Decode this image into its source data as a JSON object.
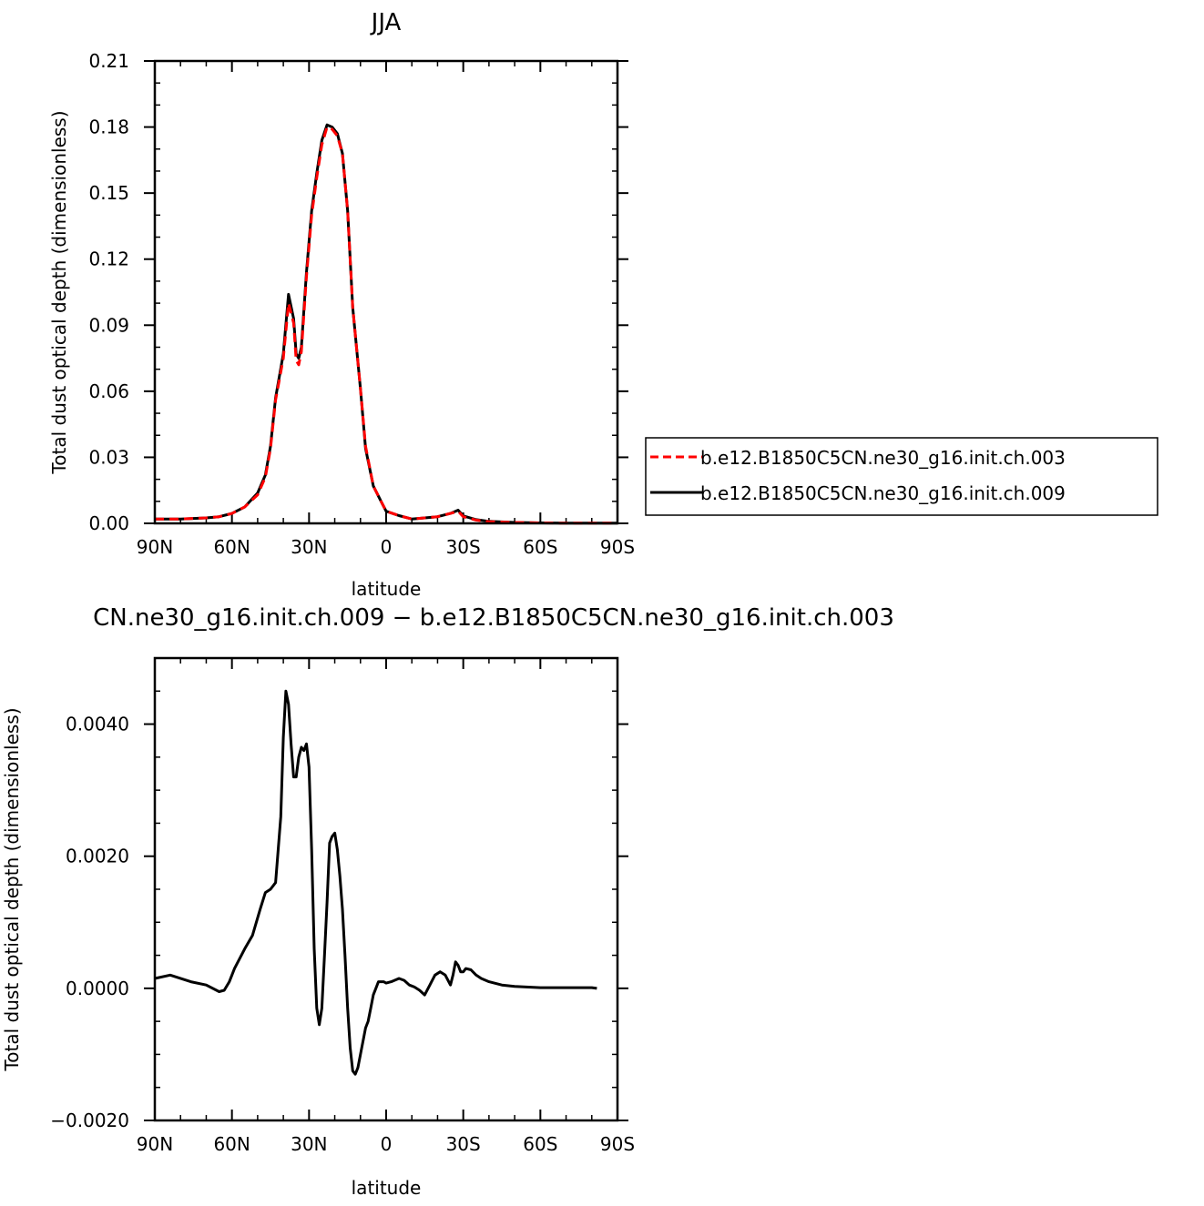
{
  "chart_data": [
    {
      "type": "line",
      "title": "JJA",
      "xlabel": "latitude",
      "ylabel": "Total dust optical depth (dimensionless)",
      "xlim": [
        90,
        -90
      ],
      "ylim": [
        0,
        0.21
      ],
      "x_ticks": [
        {
          "value": 90,
          "label": "90N"
        },
        {
          "value": 60,
          "label": "60N"
        },
        {
          "value": 30,
          "label": "30N"
        },
        {
          "value": 0,
          "label": "0"
        },
        {
          "value": -30,
          "label": "30S"
        },
        {
          "value": -60,
          "label": "60S"
        },
        {
          "value": -90,
          "label": "90S"
        }
      ],
      "y_ticks": [
        {
          "value": 0,
          "label": "0.00"
        },
        {
          "value": 0.03,
          "label": "0.03"
        },
        {
          "value": 0.06,
          "label": "0.06"
        },
        {
          "value": 0.09,
          "label": "0.09"
        },
        {
          "value": 0.12,
          "label": "0.12"
        },
        {
          "value": 0.15,
          "label": "0.15"
        },
        {
          "value": 0.18,
          "label": "0.18"
        },
        {
          "value": 0.21,
          "label": "0.21"
        }
      ],
      "grid": false,
      "legend_position": "right",
      "series": [
        {
          "name": "b.e12.B1850C5CN.ne30_g16.init.ch.003",
          "color": "#ff0000",
          "dash": "dashed",
          "x": [
            90,
            80,
            70,
            65,
            60,
            55,
            50,
            47,
            45,
            43,
            40,
            38,
            36,
            35,
            34,
            33,
            31,
            29,
            27,
            25,
            23,
            21,
            19,
            17,
            15,
            13,
            10,
            8,
            5,
            2,
            0,
            -5,
            -10,
            -15,
            -20,
            -25,
            -28,
            -30,
            -35,
            -40,
            -50,
            -60,
            -70,
            -80,
            -90
          ],
          "y": [
            0.002,
            0.002,
            0.0025,
            0.003,
            0.0045,
            0.0075,
            0.013,
            0.021,
            0.034,
            0.056,
            0.075,
            0.1,
            0.091,
            0.074,
            0.072,
            0.078,
            0.112,
            0.14,
            0.157,
            0.172,
            0.18,
            0.179,
            0.176,
            0.168,
            0.142,
            0.098,
            0.061,
            0.035,
            0.017,
            0.01,
            0.0055,
            0.0035,
            0.002,
            0.0025,
            0.003,
            0.0045,
            0.0055,
            0.003,
            0.0015,
            0.0008,
            0.0004,
            0.0002,
            0.0001,
            0.0001,
            0.0001
          ]
        },
        {
          "name": "b.e12.B1850C5CN.ne30_g16.init.ch.009",
          "color": "#000000",
          "dash": "solid",
          "x": [
            90,
            80,
            70,
            65,
            60,
            55,
            50,
            47,
            45,
            43,
            40,
            38,
            36,
            35,
            34,
            33,
            31,
            29,
            27,
            25,
            23,
            21,
            19,
            17,
            15,
            13,
            10,
            8,
            5,
            2,
            0,
            -5,
            -10,
            -15,
            -20,
            -25,
            -28,
            -30,
            -35,
            -40,
            -50,
            -60,
            -70,
            -80,
            -90
          ],
          "y": [
            0.002,
            0.002,
            0.0025,
            0.003,
            0.0045,
            0.0075,
            0.0138,
            0.022,
            0.035,
            0.057,
            0.077,
            0.104,
            0.093,
            0.077,
            0.075,
            0.08,
            0.114,
            0.142,
            0.159,
            0.174,
            0.181,
            0.18,
            0.177,
            0.168,
            0.142,
            0.098,
            0.061,
            0.034,
            0.017,
            0.01,
            0.0055,
            0.0035,
            0.002,
            0.0025,
            0.003,
            0.0045,
            0.006,
            0.0034,
            0.0017,
            0.0009,
            0.0004,
            0.0002,
            0.0001,
            0.0001,
            0.0001
          ]
        }
      ]
    },
    {
      "type": "line",
      "title": "CN.ne30_g16.init.ch.009 − b.e12.B1850C5CN.ne30_g16.init.ch.003",
      "xlabel": "latitude",
      "ylabel": "Total dust optical depth (dimensionless)",
      "xlim": [
        90,
        -90
      ],
      "ylim": [
        -0.002,
        0.005
      ],
      "x_ticks": [
        {
          "value": 90,
          "label": "90N"
        },
        {
          "value": 60,
          "label": "60N"
        },
        {
          "value": 30,
          "label": "30N"
        },
        {
          "value": 0,
          "label": "0"
        },
        {
          "value": -30,
          "label": "30S"
        },
        {
          "value": -60,
          "label": "60S"
        },
        {
          "value": -90,
          "label": "90S"
        }
      ],
      "y_ticks": [
        {
          "value": -0.002,
          "label": "−0.0020"
        },
        {
          "value": 0,
          "label": "0.0000"
        },
        {
          "value": 0.002,
          "label": "0.0020"
        },
        {
          "value": 0.004,
          "label": "0.0040"
        }
      ],
      "grid": false,
      "series": [
        {
          "color": "#000000",
          "dash": "solid",
          "x": [
            90,
            84,
            76,
            70,
            65,
            63,
            61,
            59,
            55,
            52,
            49,
            47,
            45,
            43,
            41,
            40,
            39,
            38,
            37,
            36,
            35,
            34,
            33,
            32,
            31,
            30,
            29,
            28,
            27,
            26,
            25,
            24,
            23,
            22,
            21,
            20,
            19,
            18,
            17,
            16,
            15,
            14,
            13,
            12,
            11,
            10,
            9,
            8,
            7,
            6,
            5,
            4,
            3,
            2,
            1,
            0,
            -2,
            -5,
            -7,
            -9,
            -11,
            -13,
            -15,
            -17,
            -19,
            -21,
            -23,
            -25,
            -26,
            -27,
            -28,
            -29,
            -30,
            -31,
            -33,
            -35,
            -37,
            -40,
            -45,
            -50,
            -60,
            -70,
            -80,
            -82
          ],
          "y": [
            0.00015,
            0.0002,
            0.0001,
            5e-05,
            -5e-05,
            -3e-05,
            0.0001,
            0.0003,
            0.0006,
            0.0008,
            0.0012,
            0.00145,
            0.0015,
            0.0016,
            0.0026,
            0.0038,
            0.0045,
            0.0043,
            0.0037,
            0.0032,
            0.0032,
            0.0035,
            0.00365,
            0.0036,
            0.0037,
            0.00335,
            0.0021,
            0.0006,
            -0.0003,
            -0.00055,
            -0.0003,
            0.0005,
            0.0013,
            0.0022,
            0.0023,
            0.00235,
            0.0021,
            0.0017,
            0.0012,
            0.0005,
            -0.0003,
            -0.0009,
            -0.00125,
            -0.0013,
            -0.0012,
            -0.001,
            -0.0008,
            -0.0006,
            -0.0005,
            -0.0003,
            -0.0001,
            0.0,
            0.0001,
            0.0001,
            0.0001,
            8e-05,
            0.0001,
            0.00015,
            0.00012,
            5e-05,
            2e-05,
            -3e-05,
            -0.0001,
            5e-05,
            0.0002,
            0.00025,
            0.0002,
            5e-05,
            0.0002,
            0.0004,
            0.00035,
            0.00025,
            0.00025,
            0.0003,
            0.00028,
            0.0002,
            0.00015,
            0.0001,
            5e-05,
            3e-05,
            1e-05,
            1e-05,
            1e-05,
            0.0
          ]
        }
      ]
    }
  ]
}
